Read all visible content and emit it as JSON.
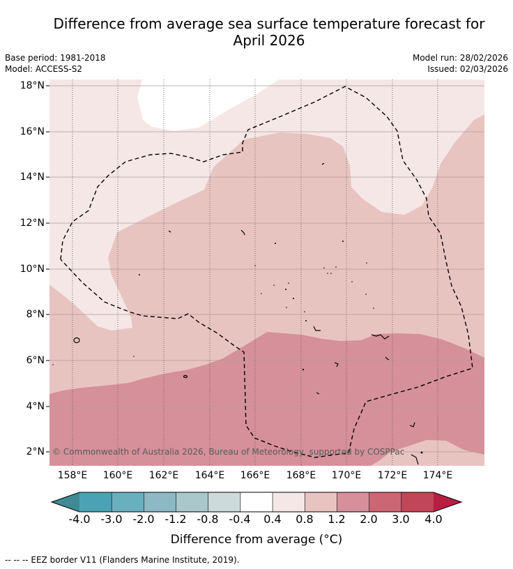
{
  "title_line1": "Difference from average sea surface temperature forecast for",
  "title_line2": "April 2026",
  "base_period": "Base period: 1981-2018",
  "model": "Model: ACCESS-S2",
  "model_run": "Model run: 28/02/2026",
  "issued": "Issued: 02/03/2026",
  "copyright": "© Commonwealth of Australia 2026, Bureau of Meteorology, supported by COSPPac",
  "lat_labels": [
    "18°N",
    "16°N",
    "14°N",
    "12°N",
    "10°N",
    "8°N",
    "6°N",
    "4°N",
    "2°N"
  ],
  "lon_labels": [
    "158°E",
    "160°E",
    "162°E",
    "164°E",
    "166°E",
    "168°E",
    "170°E",
    "172°E",
    "174°E"
  ],
  "colorbar": {
    "labels": [
      "-4.0",
      "-3.0",
      "-2.0",
      "-1.2",
      "-0.8",
      "-0.4",
      "0.4",
      "0.8",
      "1.2",
      "2.0",
      "3.0",
      "4.0"
    ],
    "colors": [
      "#4aa3b5",
      "#6aafbe",
      "#8cb9c4",
      "#a8c8cc",
      "#ccdadb",
      "#ffffff",
      "#f5e7e6",
      "#e8c4c1",
      "#d6909a",
      "#cc6674",
      "#c04758"
    ],
    "under_color": "#3f8a95",
    "over_color": "#b71f42",
    "title": "Difference from average (°C)"
  },
  "legend_note": "--  --  -- EEZ border V11 (Flanders Marine Institute, 2019).",
  "anomaly_colors": {
    "c04_08": "#f5e7e6",
    "c08_12": "#e8c4c1",
    "c12_20": "#d6909a",
    "land": "#ffffff"
  }
}
